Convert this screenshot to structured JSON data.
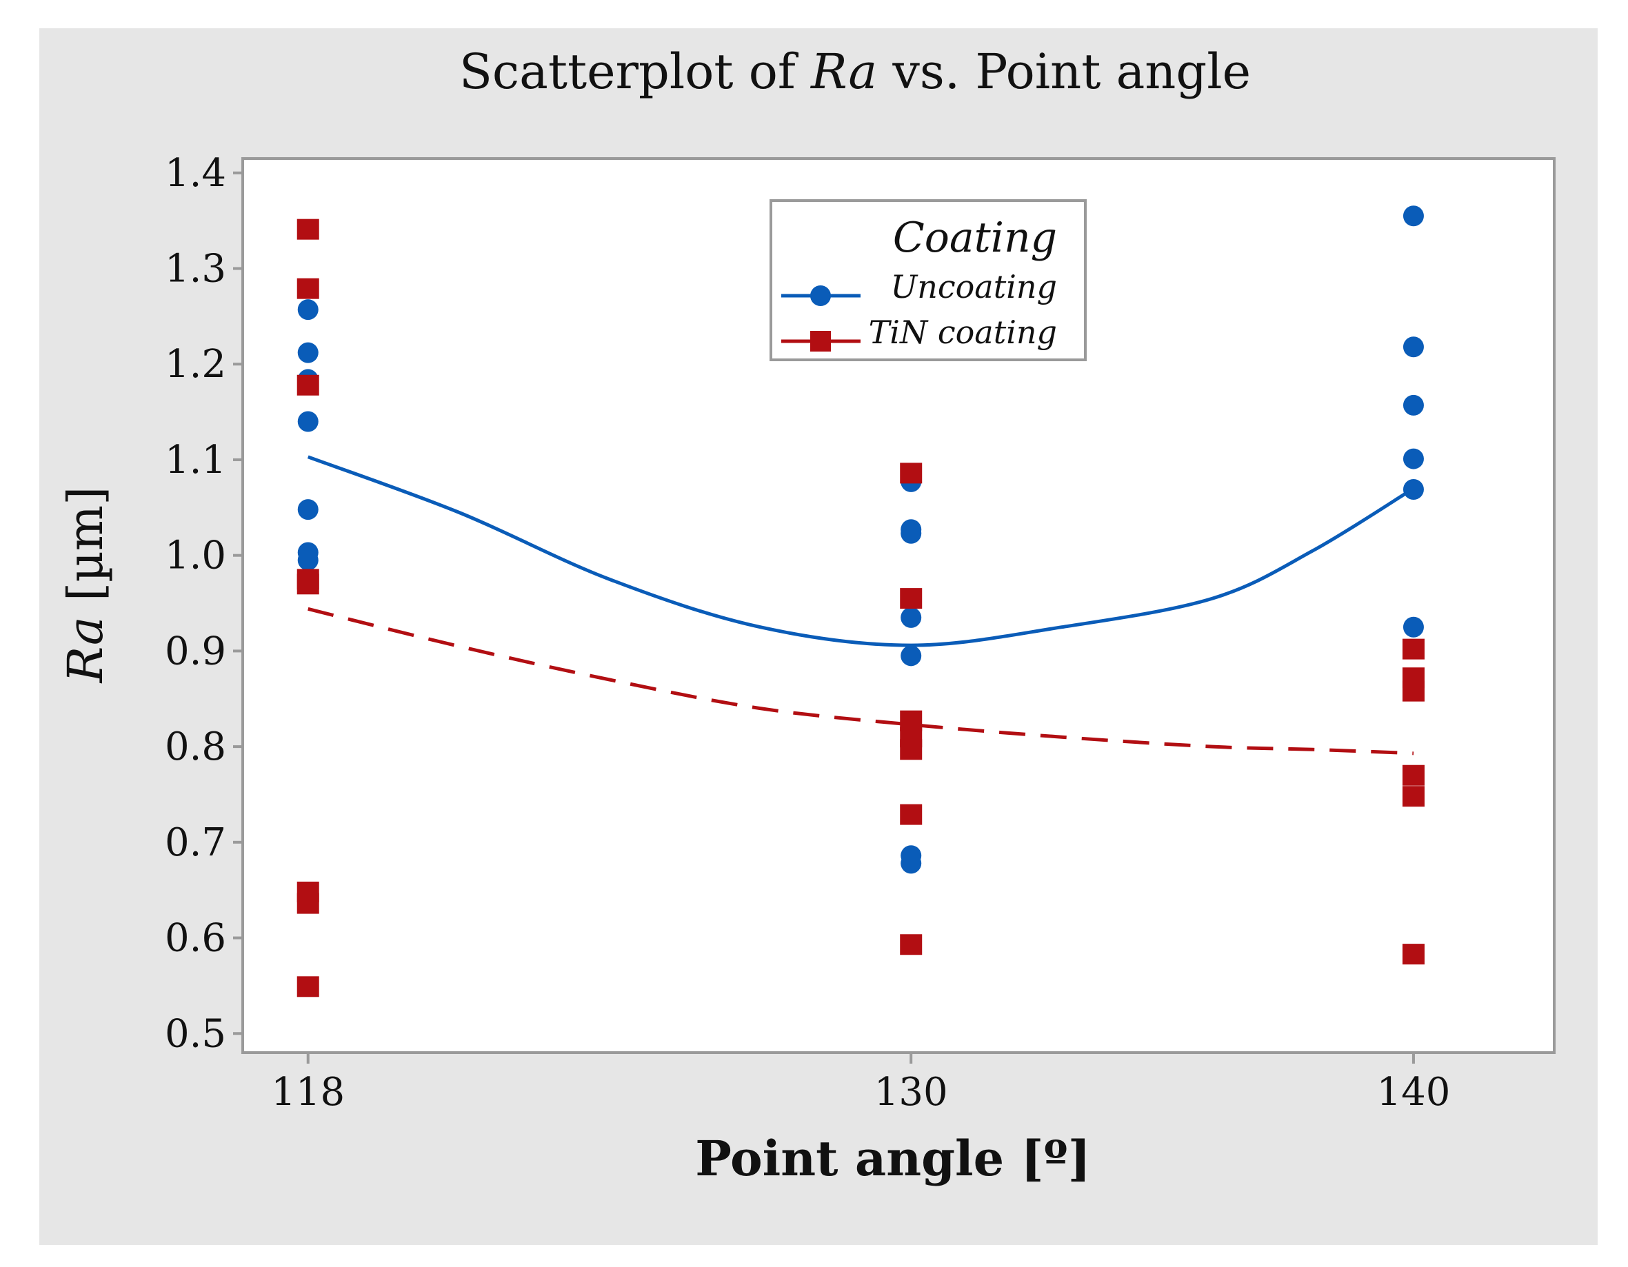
{
  "chart_data": {
    "type": "scatter",
    "title_prefix": "Scatterplot of ",
    "title_var": "Ra",
    "title_suffix": " vs. Point angle",
    "xlabel": "Point angle [º]",
    "ylabel_var": "Ra",
    "ylabel_unit": " [µm]",
    "xlim": [
      116.7,
      142.8
    ],
    "ylim": [
      0.48,
      1.415
    ],
    "x_ticks": [
      118,
      130,
      140
    ],
    "y_ticks": [
      0.5,
      0.6,
      0.7,
      0.8,
      0.9,
      1.0,
      1.1,
      1.2,
      1.3,
      1.4
    ],
    "y_tick_labels": [
      "0.5",
      "0.6",
      "0.7",
      "0.8",
      "0.9",
      "1.0",
      "1.1",
      "1.2",
      "1.3",
      "1.4"
    ],
    "x_tick_labels": [
      "118",
      "130",
      "140"
    ],
    "legend": {
      "title": "Coating",
      "position": "top-center"
    },
    "series": [
      {
        "name": "Uncoating",
        "color": "#0a5cb8",
        "marker": "circle",
        "line_style": "solid",
        "points": [
          [
            118,
            1.257
          ],
          [
            118,
            1.212
          ],
          [
            118,
            1.184
          ],
          [
            118,
            1.14
          ],
          [
            118,
            1.048
          ],
          [
            118,
            1.003
          ],
          [
            118,
            0.995
          ],
          [
            130,
            1.077
          ],
          [
            130,
            1.027
          ],
          [
            130,
            1.023
          ],
          [
            130,
            0.935
          ],
          [
            130,
            0.895
          ],
          [
            130,
            0.686
          ],
          [
            130,
            0.678
          ],
          [
            140,
            1.355
          ],
          [
            140,
            1.218
          ],
          [
            140,
            1.157
          ],
          [
            140,
            1.101
          ],
          [
            140,
            1.069
          ],
          [
            140,
            0.925
          ]
        ],
        "fit": [
          [
            118,
            1.103
          ],
          [
            121,
            1.045
          ],
          [
            124,
            0.975
          ],
          [
            127,
            0.925
          ],
          [
            130,
            0.906
          ],
          [
            133,
            0.925
          ],
          [
            136,
            0.955
          ],
          [
            138,
            1.005
          ],
          [
            140,
            1.07
          ]
        ]
      },
      {
        "name": "TiN coating",
        "color": "#b20e12",
        "marker": "square",
        "line_style": "dashed",
        "points": [
          [
            118,
            1.341
          ],
          [
            118,
            1.279
          ],
          [
            118,
            1.178
          ],
          [
            118,
            0.975
          ],
          [
            118,
            0.97
          ],
          [
            118,
            0.648
          ],
          [
            118,
            0.636
          ],
          [
            118,
            0.549
          ],
          [
            130,
            1.086
          ],
          [
            130,
            0.955
          ],
          [
            130,
            0.827
          ],
          [
            130,
            0.81
          ],
          [
            130,
            0.797
          ],
          [
            130,
            0.729
          ],
          [
            130,
            0.593
          ],
          [
            140,
            0.902
          ],
          [
            140,
            0.872
          ],
          [
            140,
            0.858
          ],
          [
            140,
            0.77
          ],
          [
            140,
            0.748
          ],
          [
            140,
            0.583
          ]
        ],
        "fit": [
          [
            118,
            0.944
          ],
          [
            121,
            0.905
          ],
          [
            124,
            0.87
          ],
          [
            127,
            0.84
          ],
          [
            130,
            0.823
          ],
          [
            133,
            0.81
          ],
          [
            136,
            0.8
          ],
          [
            138,
            0.797
          ],
          [
            140,
            0.793
          ]
        ]
      }
    ]
  }
}
